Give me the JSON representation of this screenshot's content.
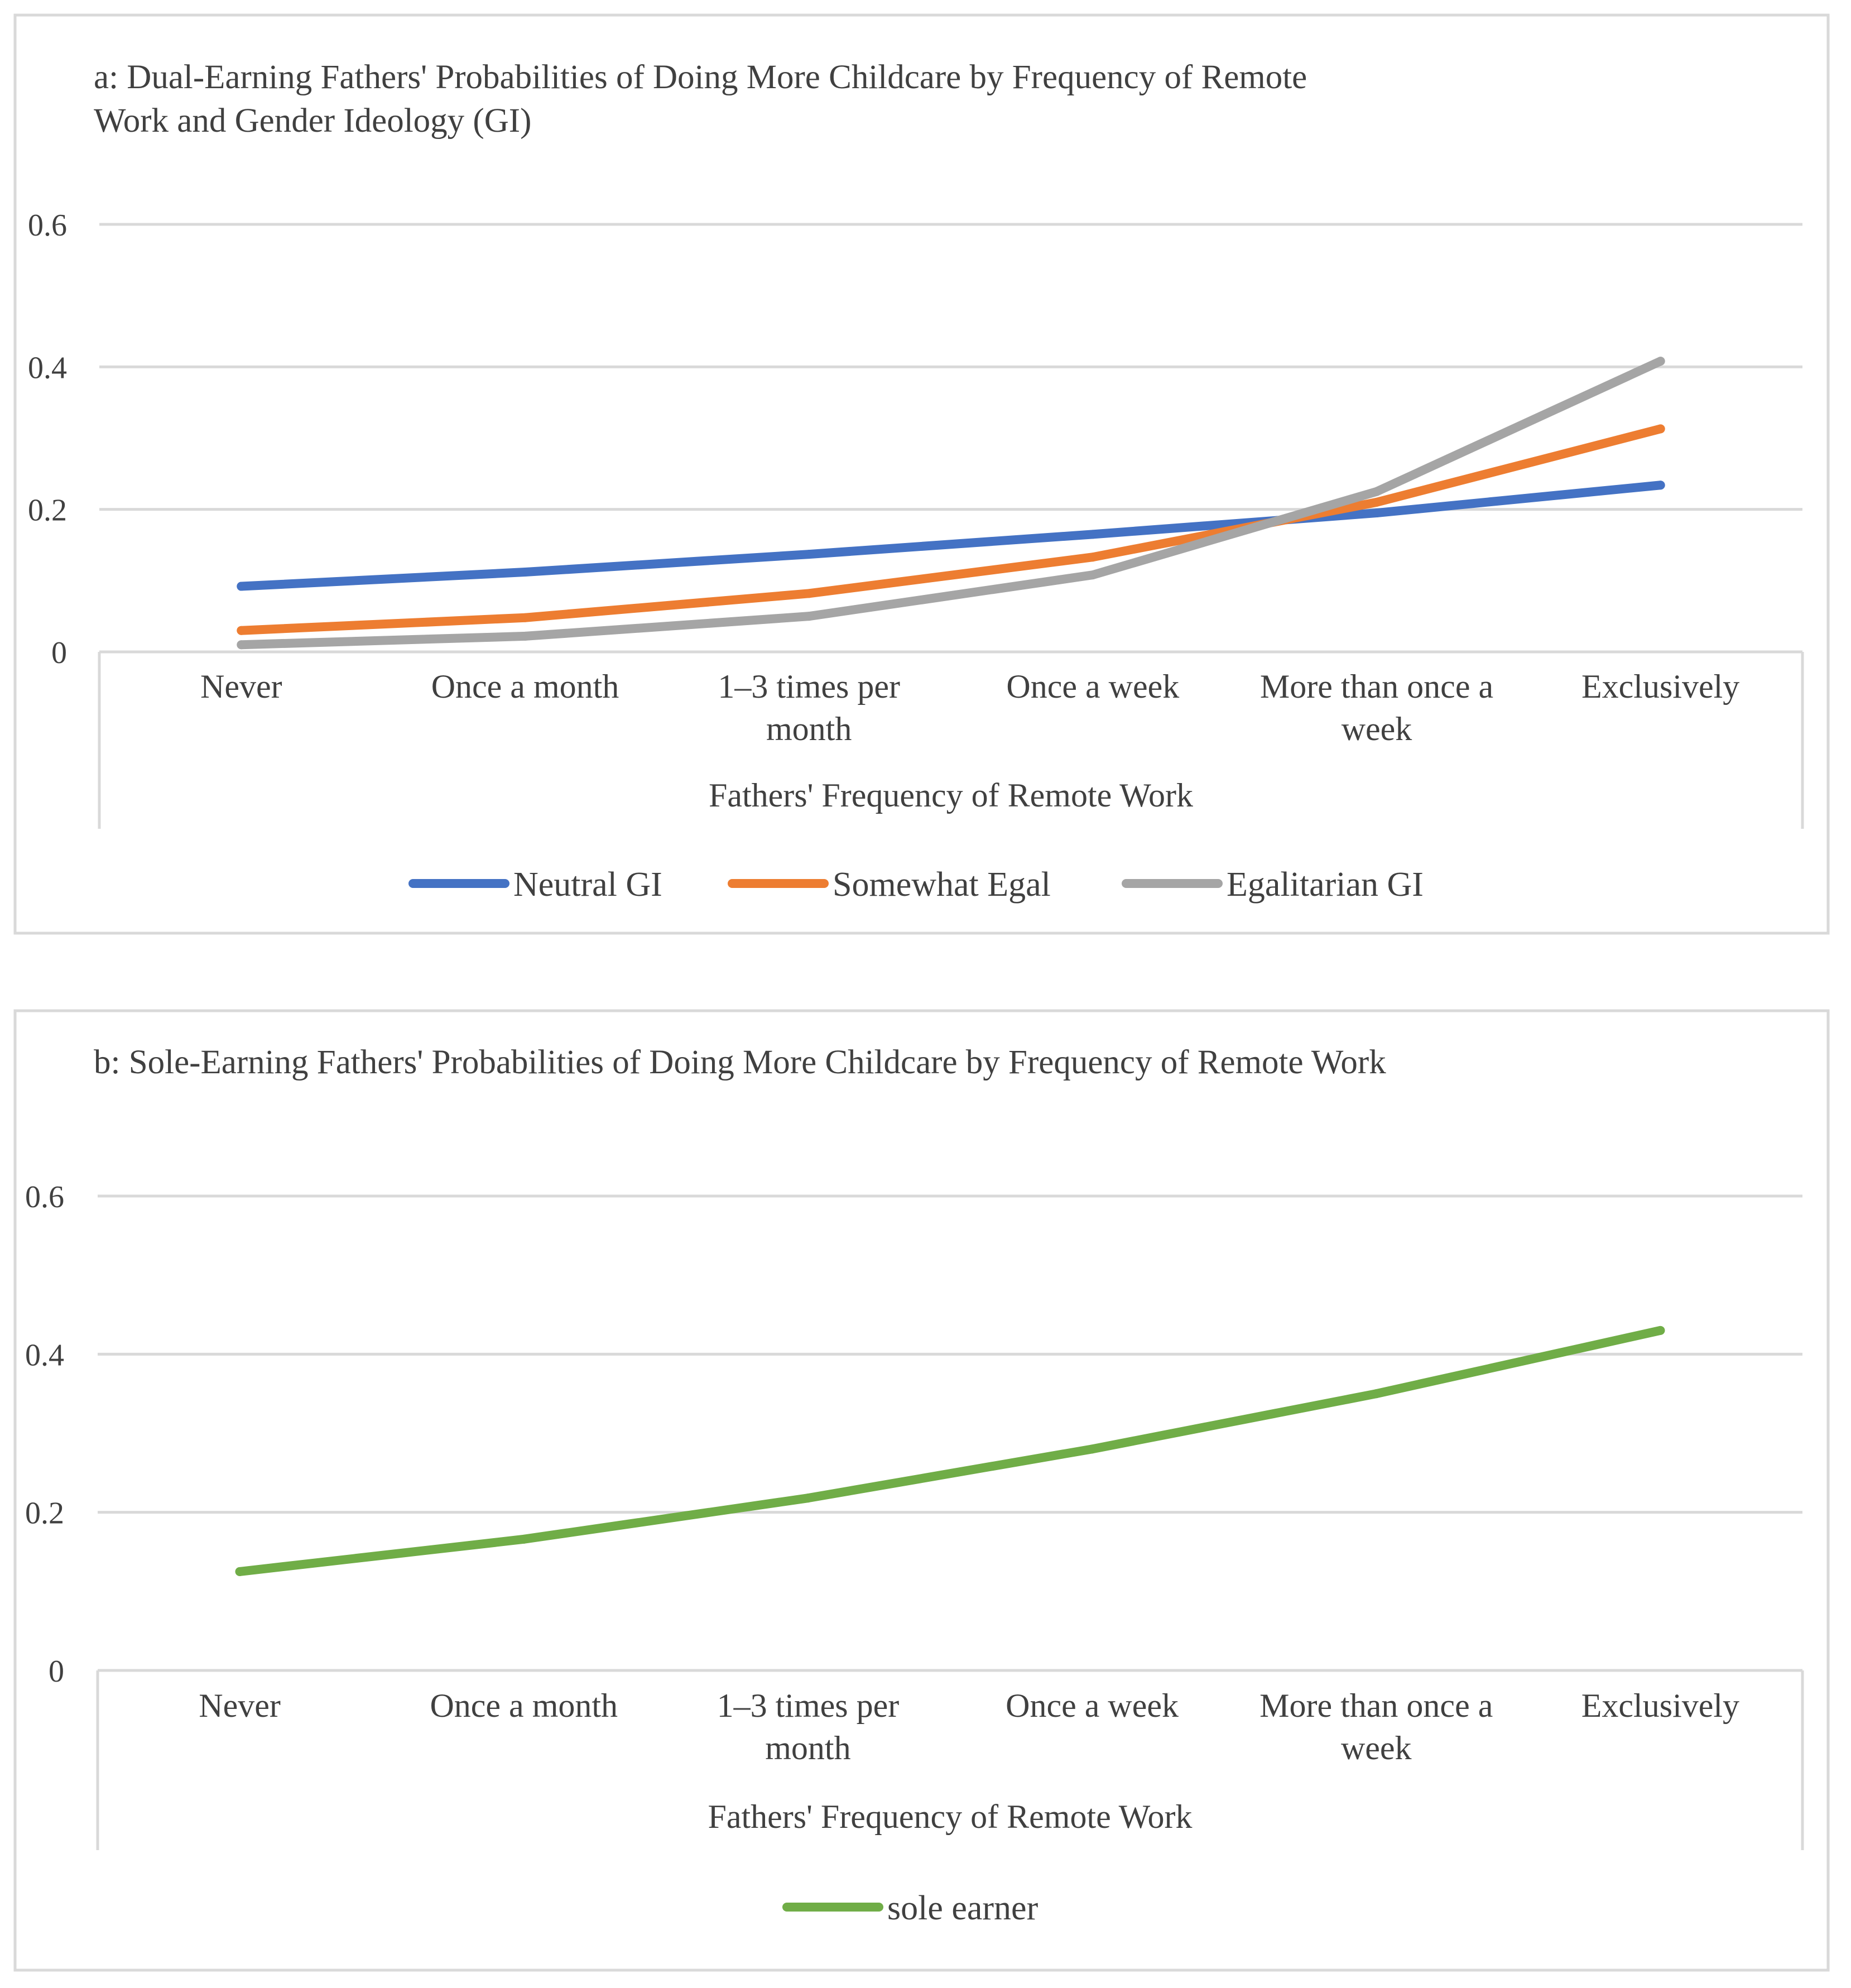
{
  "chart_data": [
    {
      "type": "line",
      "title": "a: Dual-Earning Fathers' Probabilities of Doing More Childcare by Frequency of Remote Work and Gender Ideology (GI)",
      "title_lines": [
        "a: Dual-Earning Fathers' Probabilities of Doing More Childcare by Frequency of Remote",
        "Work and Gender Ideology (GI)"
      ],
      "xlabel": "Fathers' Frequency of Remote Work",
      "ylabel": "",
      "categories": [
        "Never",
        "Once a month",
        "1–3 times per month",
        "Once a week",
        "More than once a week",
        "Exclusively"
      ],
      "category_lines": [
        [
          "Never"
        ],
        [
          "Once a month"
        ],
        [
          "1–3 times per",
          "month"
        ],
        [
          "Once a week"
        ],
        [
          "More than once a",
          "week"
        ],
        [
          "Exclusively"
        ]
      ],
      "yticks": [
        0,
        0.2,
        0.4,
        0.6
      ],
      "ytick_labels": [
        "0",
        "0.2",
        "0.4",
        "0.6"
      ],
      "ylim": [
        0,
        0.6
      ],
      "grid": true,
      "legend_position": "bottom",
      "series": [
        {
          "name": "Neutral GI",
          "color": "#4472C4",
          "values": [
            0.092,
            0.112,
            0.137,
            0.165,
            0.195,
            0.234
          ]
        },
        {
          "name": "Somewhat Egal",
          "color": "#ED7D31",
          "values": [
            0.03,
            0.048,
            0.082,
            0.133,
            0.21,
            0.313
          ]
        },
        {
          "name": "Egalitarian GI",
          "color": "#A5A5A5",
          "values": [
            0.01,
            0.022,
            0.05,
            0.108,
            0.225,
            0.408
          ]
        }
      ]
    },
    {
      "type": "line",
      "title": "b: Sole-Earning Fathers' Probabilities of Doing More Childcare by Frequency of Remote Work",
      "title_lines": [
        "b: Sole-Earning Fathers' Probabilities of Doing More Childcare by Frequency of Remote Work"
      ],
      "xlabel": "Fathers' Frequency of Remote Work",
      "ylabel": "",
      "categories": [
        "Never",
        "Once a month",
        "1–3 times per month",
        "Once a week",
        "More than once a week",
        "Exclusively"
      ],
      "category_lines": [
        [
          "Never"
        ],
        [
          "Once a month"
        ],
        [
          "1–3 times per",
          "month"
        ],
        [
          "Once a week"
        ],
        [
          "More than once a",
          "week"
        ],
        [
          "Exclusively"
        ]
      ],
      "yticks": [
        0,
        0.2,
        0.4,
        0.6
      ],
      "ytick_labels": [
        "0",
        "0.2",
        "0.4",
        "0.6"
      ],
      "ylim": [
        0,
        0.6
      ],
      "grid": true,
      "legend_position": "bottom",
      "series": [
        {
          "name": "sole earner",
          "color": "#70AD47",
          "values": [
            0.125,
            0.166,
            0.218,
            0.28,
            0.35,
            0.43
          ]
        }
      ]
    }
  ]
}
